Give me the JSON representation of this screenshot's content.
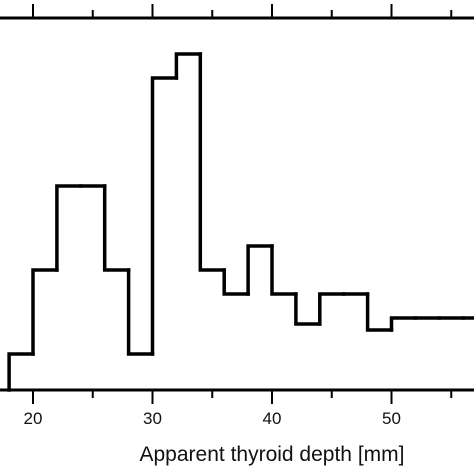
{
  "chart_data": {
    "type": "bar",
    "style": "step-histogram",
    "xlabel": "Apparent thyroid depth [mm]",
    "ylabel": "",
    "title": "",
    "x_ticks": [
      20,
      30,
      40,
      50
    ],
    "xlim": [
      18,
      57
    ],
    "ylim": [
      0,
      56
    ],
    "bin_width": 2,
    "bins": [
      {
        "x0": 18,
        "x1": 20,
        "value": 6
      },
      {
        "x0": 20,
        "x1": 22,
        "value": 20
      },
      {
        "x0": 22,
        "x1": 24,
        "value": 34
      },
      {
        "x0": 24,
        "x1": 26,
        "value": 34
      },
      {
        "x0": 26,
        "x1": 28,
        "value": 20
      },
      {
        "x0": 28,
        "x1": 30,
        "value": 6
      },
      {
        "x0": 30,
        "x1": 32,
        "value": 52
      },
      {
        "x0": 32,
        "x1": 34,
        "value": 56
      },
      {
        "x0": 34,
        "x1": 36,
        "value": 20
      },
      {
        "x0": 36,
        "x1": 38,
        "value": 16
      },
      {
        "x0": 38,
        "x1": 40,
        "value": 24
      },
      {
        "x0": 40,
        "x1": 42,
        "value": 16
      },
      {
        "x0": 42,
        "x1": 44,
        "value": 11
      },
      {
        "x0": 44,
        "x1": 46,
        "value": 16
      },
      {
        "x0": 46,
        "x1": 48,
        "value": 16
      },
      {
        "x0": 48,
        "x1": 50,
        "value": 10
      },
      {
        "x0": 50,
        "x1": 52,
        "value": 12
      },
      {
        "x0": 52,
        "x1": 54,
        "value": 12
      },
      {
        "x0": 54,
        "x1": 56,
        "value": 12
      },
      {
        "x0": 56,
        "x1": 58,
        "value": 12
      }
    ],
    "line_color": "#000000"
  }
}
